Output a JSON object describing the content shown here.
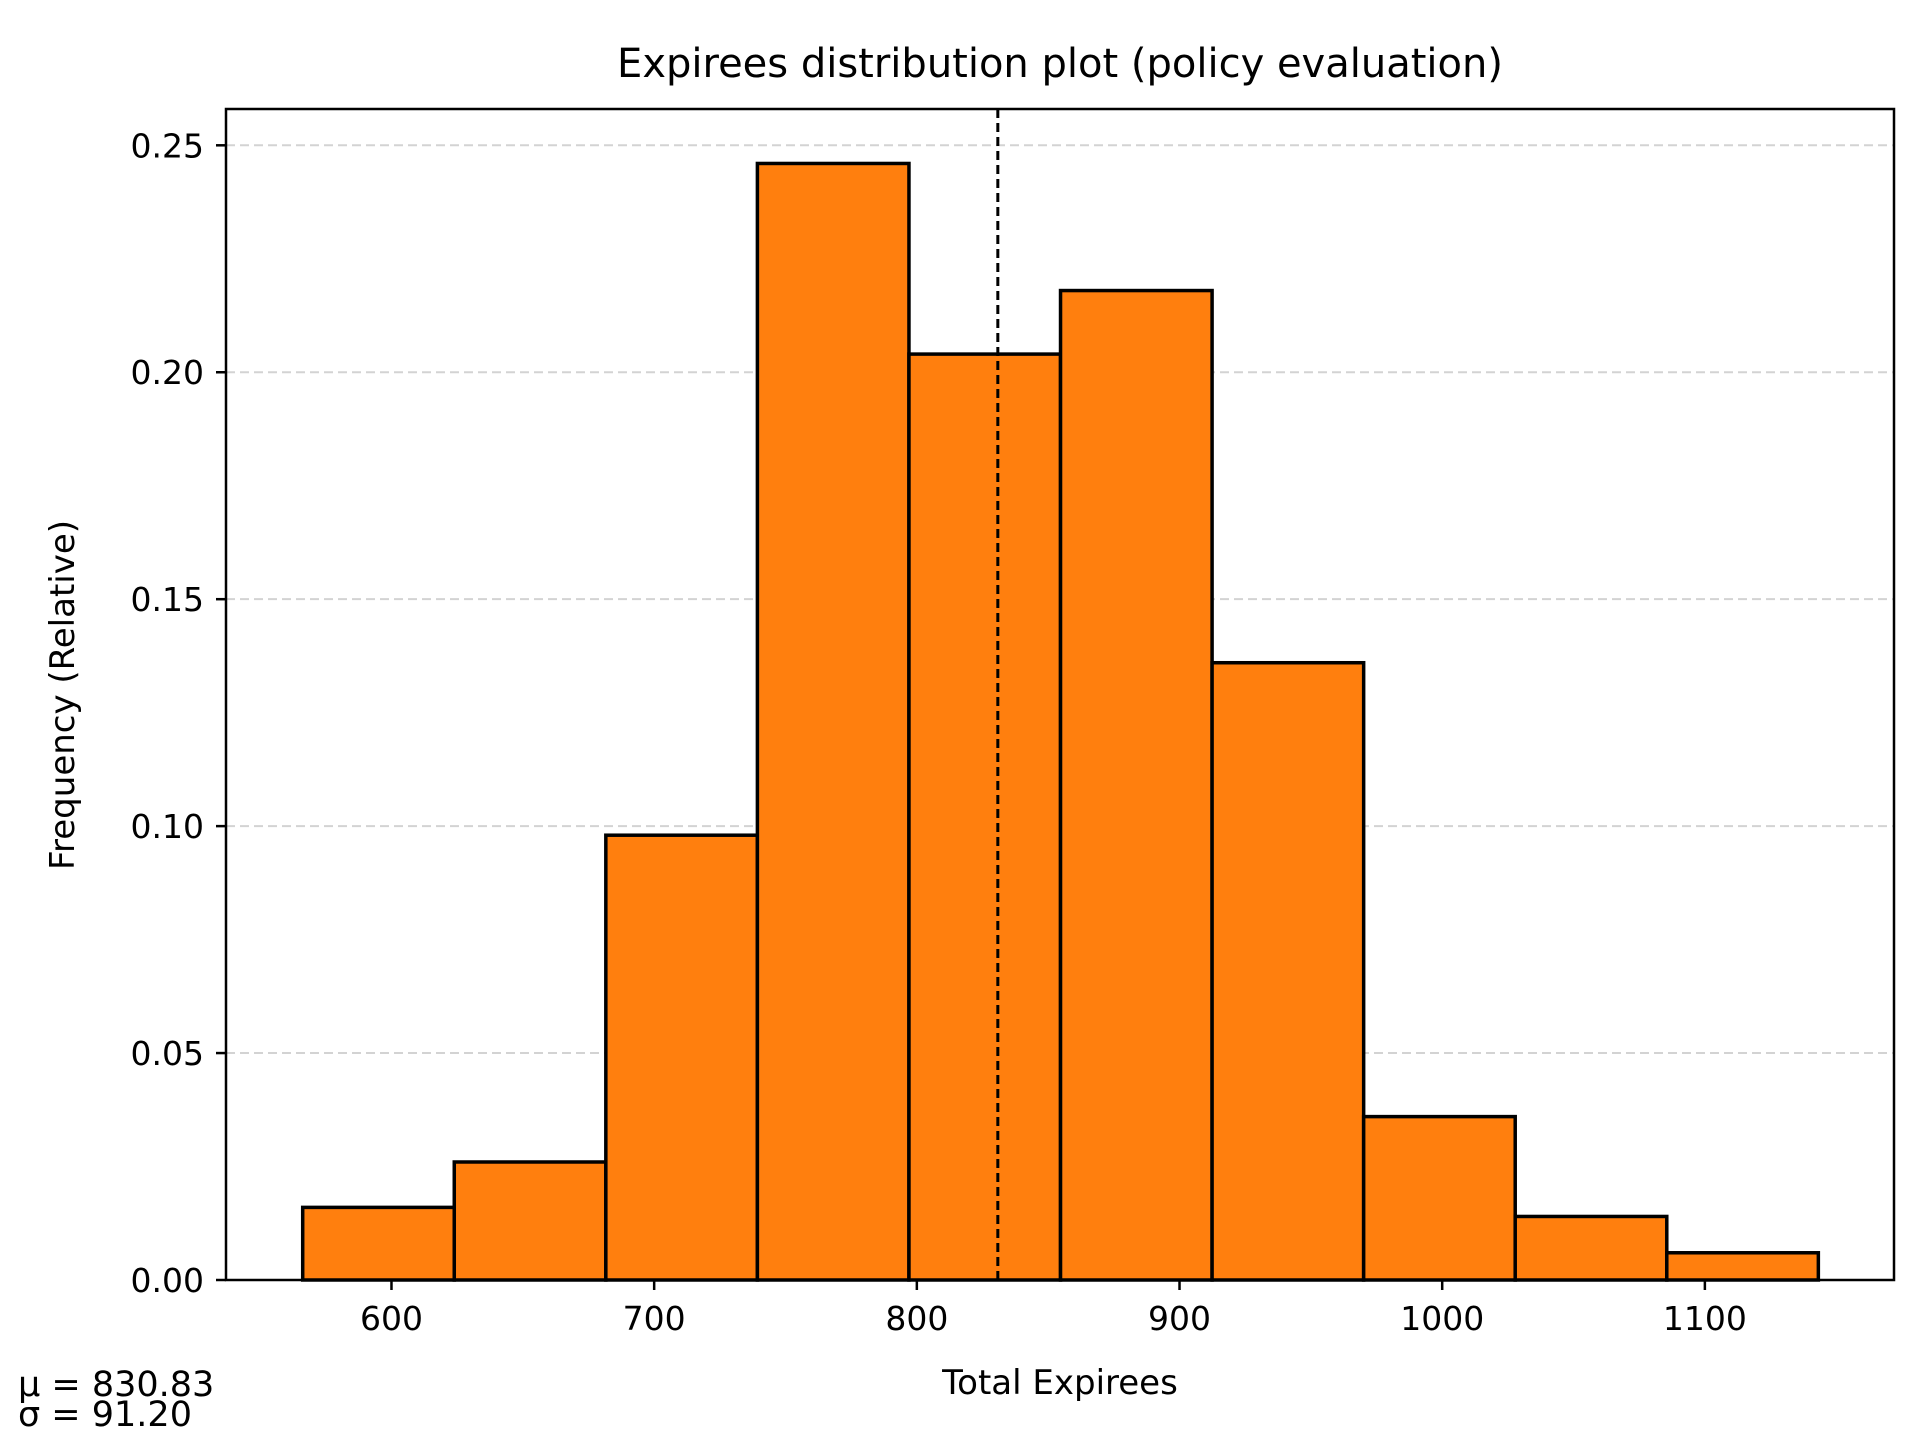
{
  "chart_data": {
    "type": "bar",
    "title": "Expirees distribution plot (policy evaluation)",
    "xlabel": "Total Expirees",
    "ylabel": "Frequency (Relative)",
    "xlim": [
      537,
      1172
    ],
    "ylim": [
      0,
      0.258
    ],
    "x_ticks": [
      600,
      700,
      800,
      900,
      1000,
      1100
    ],
    "x_tick_labels": [
      "600",
      "700",
      "800",
      "900",
      "1000",
      "1100"
    ],
    "y_ticks": [
      0.0,
      0.05,
      0.1,
      0.15,
      0.2,
      0.25
    ],
    "y_tick_labels": [
      "0.00",
      "0.05",
      "0.10",
      "0.15",
      "0.20",
      "0.25"
    ],
    "grid": "horizontal dashed",
    "bins": [
      {
        "x0": 566.2,
        "x1": 623.9,
        "value": 0.016
      },
      {
        "x0": 623.9,
        "x1": 681.6,
        "value": 0.026
      },
      {
        "x0": 681.6,
        "x1": 739.3,
        "value": 0.098
      },
      {
        "x0": 739.3,
        "x1": 797.0,
        "value": 0.246
      },
      {
        "x0": 797.0,
        "x1": 854.7,
        "value": 0.204
      },
      {
        "x0": 854.7,
        "x1": 912.4,
        "value": 0.218
      },
      {
        "x0": 912.4,
        "x1": 970.1,
        "value": 0.136
      },
      {
        "x0": 970.1,
        "x1": 1027.8,
        "value": 0.036
      },
      {
        "x0": 1027.8,
        "x1": 1085.5,
        "value": 0.014
      },
      {
        "x0": 1085.5,
        "x1": 1143.2,
        "value": 0.006
      }
    ],
    "mean_line": 830.83,
    "stats": {
      "mu_label": "μ = 830.83",
      "sigma_label": "σ = 91.20"
    },
    "colors": {
      "bar_fill": "#ff7f0e",
      "bar_edge": "#000000",
      "grid": "#d3d3d3",
      "mean_line": "#000000"
    }
  }
}
